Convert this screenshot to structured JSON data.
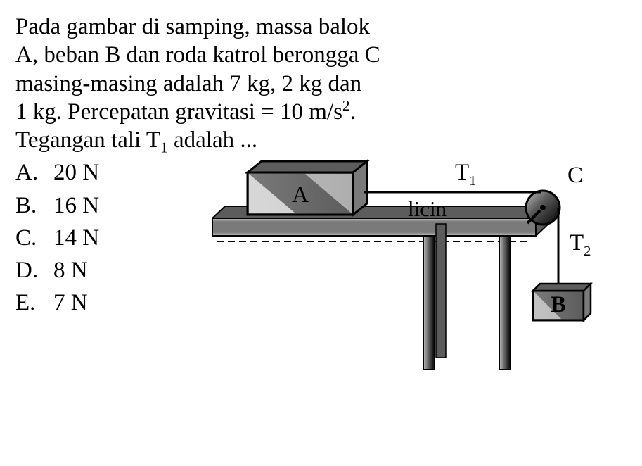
{
  "question": {
    "line1": "Pada gambar di samping, massa balok",
    "line2": "A, beban B dan roda katrol berongga C",
    "line3": "masing-masing adalah 7 kg, 2 kg dan",
    "line4_pre": "1 kg. Percepatan gravitasi  = 10 m/s",
    "line4_exp": "2",
    "line4_post": ".",
    "line5_pre": "Tegangan tali T",
    "line5_sub": "1",
    "line5_post": " adalah ..."
  },
  "options": [
    {
      "letter": "A.",
      "value": "20 N"
    },
    {
      "letter": "B.",
      "value": "16 N"
    },
    {
      "letter": "C.",
      "value": "14 N"
    },
    {
      "letter": "D.",
      "value": "8 N"
    },
    {
      "letter": "E.",
      "value": "7 N"
    }
  ],
  "figure": {
    "labels": {
      "A": "A",
      "B": "B",
      "C": "C",
      "T1": "T",
      "T1_sub": "1",
      "T2": "T",
      "T2_sub": "2",
      "licin": "licin"
    },
    "colors": {
      "gray_dark": "#5c5c5c",
      "gray_mid": "#7a7a7a",
      "gray_light": "#bfbfbf",
      "black": "#000000",
      "white": "#ffffff"
    },
    "font": {
      "label_size": 33
    }
  }
}
